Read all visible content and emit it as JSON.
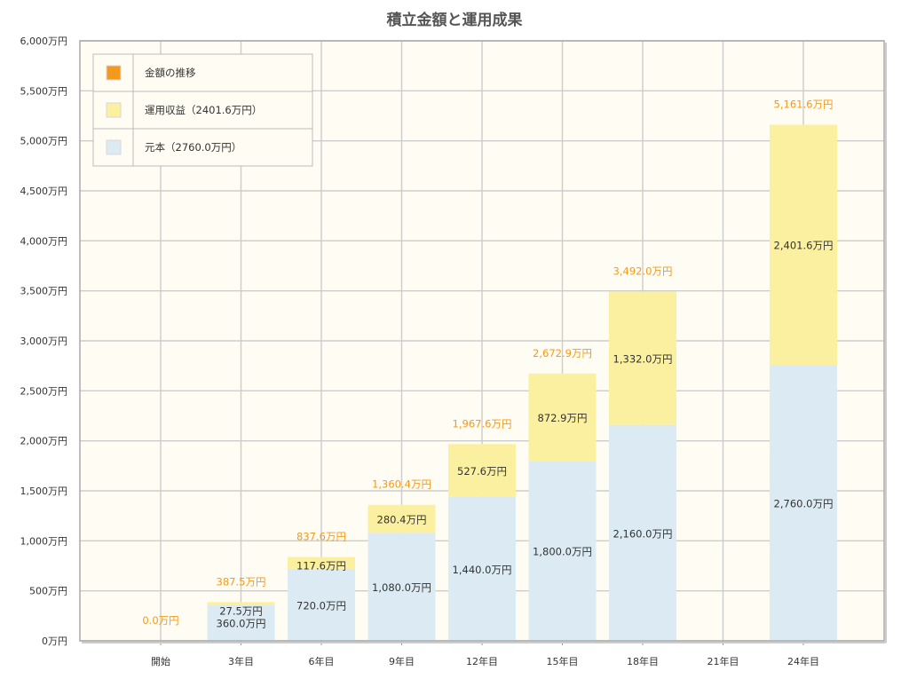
{
  "chart_data": {
    "type": "bar",
    "title": "積立金額と運用成果",
    "xlabel": "",
    "ylabel": "",
    "ylim": [
      0,
      6000
    ],
    "grid": true,
    "legend_position": "top-left",
    "categories": [
      "開始",
      "3年目",
      "6年目",
      "9年目",
      "12年目",
      "15年目",
      "18年目",
      "21年目",
      "24年目"
    ],
    "yticks": [
      "0万円",
      "500万円",
      "1,000万円",
      "1,500万円",
      "2,000万円",
      "2,500万円",
      "3,000万円",
      "3,500万円",
      "4,000万円",
      "4,500万円",
      "5,000万円",
      "5,500万円",
      "6,000万円"
    ],
    "ytick_values": [
      0,
      500,
      1000,
      1500,
      2000,
      2500,
      3000,
      3500,
      4000,
      4500,
      5000,
      5500,
      6000
    ],
    "bars": [
      {
        "category": "開始",
        "principal": null,
        "returns": null,
        "total": 0.0,
        "principal_label": "",
        "returns_label": "",
        "total_label": "0.0万円"
      },
      {
        "category": "3年目",
        "principal": 360.0,
        "returns": 27.5,
        "total": 387.5,
        "principal_label": "360.0万円",
        "returns_label": "27.5万円",
        "total_label": "387.5万円"
      },
      {
        "category": "6年目",
        "principal": 720.0,
        "returns": 117.6,
        "total": 837.6,
        "principal_label": "720.0万円",
        "returns_label": "117.6万円",
        "total_label": "837.6万円"
      },
      {
        "category": "9年目",
        "principal": 1080.0,
        "returns": 280.4,
        "total": 1360.4,
        "principal_label": "1,080.0万円",
        "returns_label": "280.4万円",
        "total_label": "1,360.4万円"
      },
      {
        "category": "12年目",
        "principal": 1440.0,
        "returns": 527.6,
        "total": 1967.6,
        "principal_label": "1,440.0万円",
        "returns_label": "527.6万円",
        "total_label": "1,967.6万円"
      },
      {
        "category": "15年目",
        "principal": 1800.0,
        "returns": 872.9,
        "total": 2672.9,
        "principal_label": "1,800.0万円",
        "returns_label": "872.9万円",
        "total_label": "2,672.9万円"
      },
      {
        "category": "18年目",
        "principal": 2160.0,
        "returns": 1332.0,
        "total": 3492.0,
        "principal_label": "2,160.0万円",
        "returns_label": "1,332.0万円",
        "total_label": "3,492.0万円"
      },
      {
        "category": "21年目",
        "principal": null,
        "returns": null,
        "total": null,
        "principal_label": "",
        "returns_label": "",
        "total_label": ""
      },
      {
        "category": "24年目",
        "principal": 2760.0,
        "returns": 2401.6,
        "total": 5161.6,
        "principal_label": "2,760.0万円",
        "returns_label": "2,401.6万円",
        "total_label": "5,161.6万円"
      }
    ],
    "legend": [
      {
        "name": "金額の推移",
        "color": "#f39a1c"
      },
      {
        "name": "運用収益（2401.6万円）",
        "color": "#fbf0a0"
      },
      {
        "name": "元本（2760.0万円）",
        "color": "#dcebf3"
      }
    ],
    "colors": {
      "principal": "#dcebf3",
      "returns": "#fbf0a0",
      "total_label": "#f39a1c",
      "plot_background": "#fffcf3",
      "grid": "#cccccc"
    }
  }
}
